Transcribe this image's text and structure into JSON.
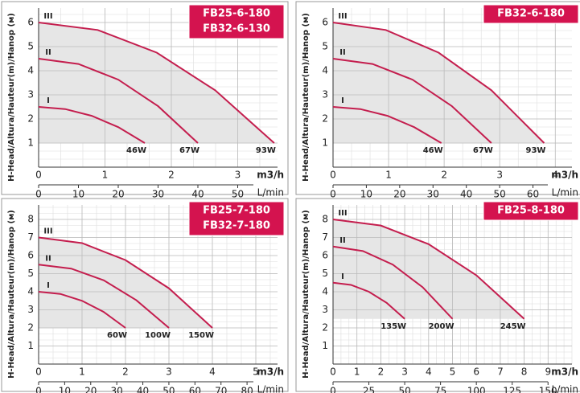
{
  "chart_data": [
    {
      "type": "line",
      "title": [
        "FB25-6-180",
        "FB32-6-130"
      ],
      "ylabel": "H-Head/Altura/Hauteur(m)/Hanop (м)",
      "xlabel": "m3/h",
      "x2label": "L/min",
      "xlim": [
        0,
        3.6
      ],
      "xticks": [
        0,
        1,
        2,
        3
      ],
      "ylim": [
        0,
        6.6
      ],
      "yticks": [
        1,
        2,
        3,
        4,
        5,
        6
      ],
      "x2lim": [
        0,
        60
      ],
      "x2ticks": [
        0,
        10,
        20,
        30,
        40,
        50
      ],
      "grid": true,
      "series": [
        {
          "name": "III",
          "label": "93W",
          "color": "#c41e4e",
          "x": [
            0,
            0.89,
            1.78,
            2.66,
            3.55
          ],
          "values": [
            6,
            5.69,
            4.75,
            3.19,
            1
          ]
        },
        {
          "name": "II",
          "label": "67W",
          "color": "#c41e4e",
          "x": [
            0,
            0.6,
            1.2,
            1.8,
            2.4
          ],
          "values": [
            4.5,
            4.28,
            3.63,
            2.53,
            1
          ]
        },
        {
          "name": "I",
          "label": "46W",
          "color": "#c41e4e",
          "x": [
            0,
            0.4,
            0.8,
            1.2,
            1.6
          ],
          "values": [
            2.5,
            2.41,
            2.13,
            1.66,
            1
          ]
        }
      ]
    },
    {
      "type": "line",
      "title": [
        "FB32-6-180"
      ],
      "ylabel": "H-Head/Altura/Hauteur(m)/Hanop (м)",
      "xlabel": "m3/h",
      "x2label": "L/min",
      "xlim": [
        0,
        4.3
      ],
      "xticks": [
        0,
        1,
        2,
        3,
        4
      ],
      "ylim": [
        0,
        6.6
      ],
      "yticks": [
        1,
        2,
        3,
        4,
        5,
        6
      ],
      "x2lim": [
        0,
        71.7
      ],
      "x2ticks": [
        0,
        10,
        20,
        30,
        40,
        50,
        60
      ],
      "grid": true,
      "series": [
        {
          "name": "III",
          "label": "93W",
          "color": "#c41e4e",
          "x": [
            0,
            0.95,
            1.9,
            2.85,
            3.8
          ],
          "values": [
            6,
            5.69,
            4.75,
            3.19,
            1
          ]
        },
        {
          "name": "II",
          "label": "67W",
          "color": "#c41e4e",
          "x": [
            0,
            0.71,
            1.43,
            2.14,
            2.85
          ],
          "values": [
            4.5,
            4.28,
            3.63,
            2.53,
            1
          ]
        },
        {
          "name": "I",
          "label": "46W",
          "color": "#c41e4e",
          "x": [
            0,
            0.49,
            0.98,
            1.46,
            1.95
          ],
          "values": [
            2.5,
            2.41,
            2.13,
            1.66,
            1
          ]
        }
      ]
    },
    {
      "type": "line",
      "title": [
        "FB25-7-180",
        "FB32-7-180"
      ],
      "ylabel": "H-Head/Altura/Hauteur(m)/Hanop (м)",
      "xlabel": "m3/h",
      "x2label": "L/min",
      "xlim": [
        0,
        5.5
      ],
      "xticks": [
        0,
        1,
        2,
        3,
        4,
        5
      ],
      "ylim": [
        0,
        8.8
      ],
      "yticks": [
        1,
        2,
        3,
        4,
        5,
        6,
        7,
        8
      ],
      "x2lim": [
        0,
        91.7
      ],
      "x2ticks": [
        0,
        10,
        20,
        30,
        40,
        50,
        60,
        70,
        80
      ],
      "grid": true,
      "series": [
        {
          "name": "III",
          "label": "150W",
          "color": "#c41e4e",
          "x": [
            0,
            1,
            2,
            3,
            4
          ],
          "values": [
            7,
            6.69,
            5.75,
            4.19,
            2
          ]
        },
        {
          "name": "II",
          "label": "100W",
          "color": "#c41e4e",
          "x": [
            0,
            0.75,
            1.5,
            2.25,
            3
          ],
          "values": [
            5.5,
            5.28,
            4.63,
            3.53,
            2
          ]
        },
        {
          "name": "I",
          "label": "60W",
          "color": "#c41e4e",
          "x": [
            0,
            0.5,
            1,
            1.5,
            2
          ],
          "values": [
            4,
            3.88,
            3.5,
            2.88,
            2
          ]
        }
      ]
    },
    {
      "type": "line",
      "title": [
        "FB25-8-180"
      ],
      "ylabel": "H-Head/Altura/Hauteur(m)/Hanop (м)",
      "xlabel": "m3/h",
      "x2label": "L/min",
      "xlim": [
        0,
        10
      ],
      "xticks": [
        0,
        1,
        2,
        3,
        4,
        5,
        6,
        7,
        8,
        9
      ],
      "ylim": [
        0,
        8.8
      ],
      "yticks": [
        1,
        2,
        3,
        4,
        5,
        6,
        7,
        8
      ],
      "x2lim": [
        0,
        166.7
      ],
      "x2ticks": [
        0,
        25,
        50,
        75,
        100,
        125,
        150
      ],
      "grid": true,
      "series": [
        {
          "name": "III",
          "label": "245W",
          "color": "#c41e4e",
          "x": [
            0,
            2,
            4,
            6,
            8
          ],
          "values": [
            8,
            7.66,
            6.63,
            4.91,
            2.5
          ]
        },
        {
          "name": "II",
          "label": "200W",
          "color": "#c41e4e",
          "x": [
            0,
            1.25,
            2.5,
            3.75,
            5
          ],
          "values": [
            6.5,
            6.25,
            5.5,
            4.25,
            2.5
          ]
        },
        {
          "name": "I",
          "label": "135W",
          "color": "#c41e4e",
          "x": [
            0,
            0.75,
            1.5,
            2.25,
            3
          ],
          "values": [
            4.5,
            4.38,
            4,
            3.38,
            2.5
          ]
        }
      ]
    }
  ]
}
